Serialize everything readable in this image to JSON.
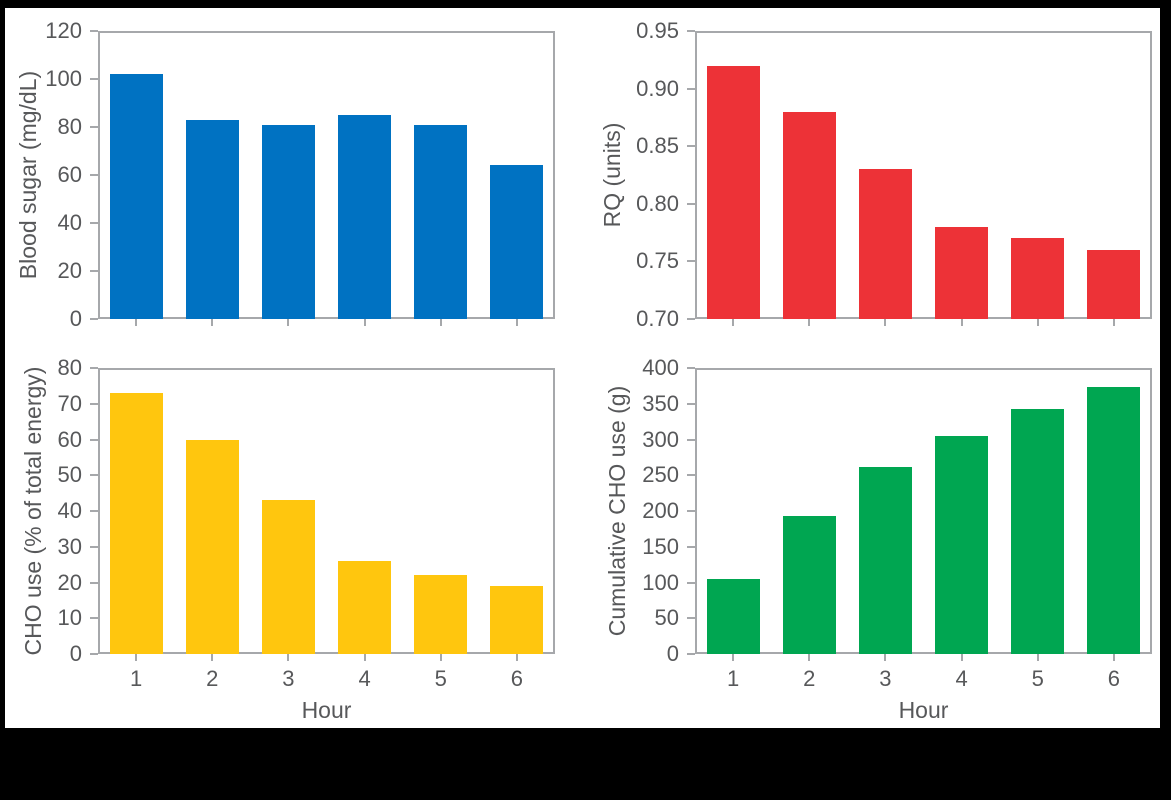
{
  "figure": {
    "background_color": "#000000",
    "panel_color": "#ffffff",
    "axis_line_color": "#a6a8ab",
    "text_color": "#57585a"
  },
  "chart_data": [
    {
      "type": "bar",
      "position": "top-left",
      "ylabel": "Blood sugar (mg/dL)",
      "xlabel": "",
      "show_x_labels": false,
      "color": "#0072c2",
      "ylim": [
        0,
        120
      ],
      "yticks": [
        "0",
        "20",
        "40",
        "60",
        "80",
        "100",
        "120"
      ],
      "categories": [
        "1",
        "2",
        "3",
        "4",
        "5",
        "6"
      ],
      "values": [
        102,
        83,
        81,
        85,
        81,
        64
      ],
      "grid": false,
      "legend": "none"
    },
    {
      "type": "bar",
      "position": "top-right",
      "ylabel": "RQ (units)",
      "xlabel": "",
      "show_x_labels": false,
      "color": "#ed3237",
      "ylim": [
        0.7,
        0.95
      ],
      "yticks": [
        "0.70",
        "0.75",
        "0.80",
        "0.85",
        "0.90",
        "0.95"
      ],
      "categories": [
        "1",
        "2",
        "3",
        "4",
        "5",
        "6"
      ],
      "values": [
        0.92,
        0.88,
        0.83,
        0.78,
        0.77,
        0.76
      ],
      "grid": false,
      "legend": "none"
    },
    {
      "type": "bar",
      "position": "bottom-left",
      "ylabel": "CHO use (% of total energy)",
      "xlabel": "Hour",
      "show_x_labels": true,
      "color": "#ffc60e",
      "ylim": [
        0,
        80
      ],
      "yticks": [
        "0",
        "10",
        "20",
        "30",
        "40",
        "50",
        "60",
        "70",
        "80"
      ],
      "categories": [
        "1",
        "2",
        "3",
        "4",
        "5",
        "6"
      ],
      "values": [
        73,
        60,
        43,
        26,
        22,
        19
      ],
      "grid": false,
      "legend": "none"
    },
    {
      "type": "bar",
      "position": "bottom-right",
      "ylabel": "Cumulative CHO use (g)",
      "xlabel": "Hour",
      "show_x_labels": true,
      "color": "#00a651",
      "ylim": [
        0,
        400
      ],
      "yticks": [
        "0",
        "50",
        "100",
        "150",
        "200",
        "250",
        "300",
        "350",
        "400"
      ],
      "categories": [
        "1",
        "2",
        "3",
        "4",
        "5",
        "6"
      ],
      "values": [
        105,
        193,
        262,
        305,
        343,
        374
      ],
      "grid": false,
      "legend": "none"
    }
  ]
}
